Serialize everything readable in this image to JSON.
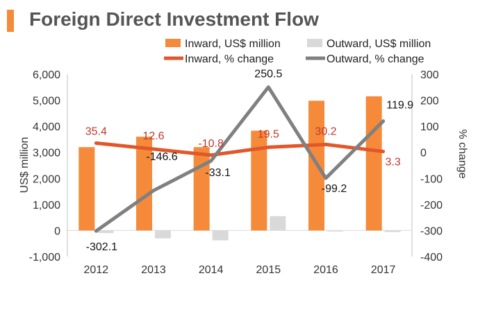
{
  "title": "Foreign Direct Investment Flow",
  "colors": {
    "inward": "#f58a3a",
    "outward": "#d9d9d9",
    "inward_line": "#e2572a",
    "outward_line": "#808080",
    "label_red": "#c0392b"
  },
  "chart_data": {
    "type": "bar+line",
    "categories": [
      "2012",
      "2013",
      "2014",
      "2015",
      "2016",
      "2017"
    ],
    "series": [
      {
        "name": "Inward, US$ million",
        "kind": "bar",
        "axis": "left",
        "values": [
          3200,
          3600,
          3200,
          3830,
          4980,
          5150
        ]
      },
      {
        "name": "Outward, US$ million",
        "kind": "bar",
        "axis": "left",
        "values": [
          -100,
          -300,
          -380,
          550,
          -40,
          -60
        ]
      },
      {
        "name": "Inward, % change",
        "kind": "line",
        "axis": "right",
        "values": [
          35.4,
          12.6,
          -10.8,
          19.5,
          30.2,
          3.3
        ],
        "labels": [
          "35.4",
          "12.6",
          "-10.8",
          "19.5",
          "30.2",
          "3.3"
        ]
      },
      {
        "name": "Outward, % change",
        "kind": "line",
        "axis": "right",
        "values": [
          -302.1,
          -146.6,
          -33.1,
          250.5,
          -99.2,
          119.9
        ],
        "labels": [
          "-302.1",
          "-146.6",
          "-33.1",
          "250.5",
          "-99.2",
          "119.9"
        ]
      }
    ],
    "ylabel": "US$ million",
    "y2label": "% change",
    "ylim": [
      -1000,
      6000
    ],
    "y2lim": [
      -400,
      300
    ],
    "yticks": [
      "-1,000",
      "0",
      "1,000",
      "2,000",
      "3,000",
      "4,000",
      "5,000",
      "6,000"
    ],
    "y2ticks": [
      "-400",
      "-300",
      "-200",
      "-100",
      "0",
      "100",
      "200",
      "300"
    ],
    "legend_position": "top"
  }
}
